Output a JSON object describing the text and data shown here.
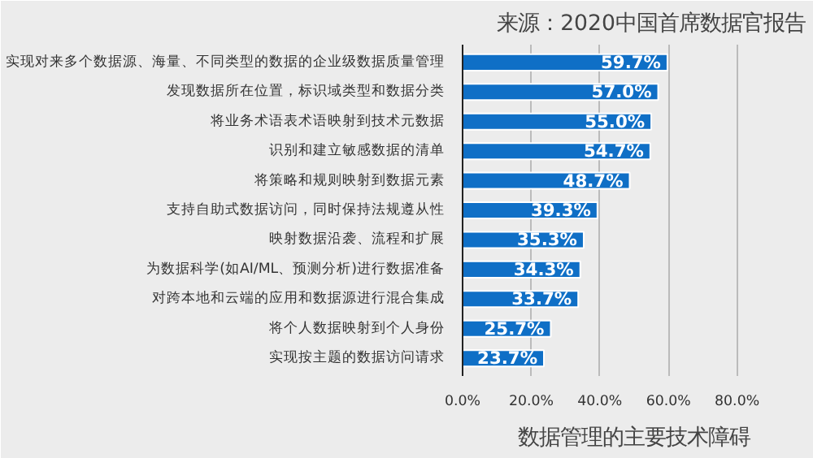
{
  "chart_data": {
    "type": "bar",
    "orientation": "horizontal",
    "title": "数据管理的主要技术障碍",
    "annotations": [
      "来源：2020中国首席数据官报告"
    ],
    "categories": [
      "实现对来多个数据源、海量、不同类型的数据的企业级数据质量管理",
      "发现数据所在位置，标识域类型和数据分类",
      "将业务术语表术语映射到技术元数据",
      "识别和建立敏感数据的清单",
      "将策略和规则映射到数据元素",
      "支持自助式数据访问，同时保持法规遵从性",
      "映射数据沿袭、流程和扩展",
      "为数据科学(如AI/ML、预测分析)进行数据准备",
      "对跨本地和云端的应用和数据源进行混合集成",
      "将个人数据映射到个人身份",
      "实现按主题的数据访问请求"
    ],
    "values": [
      59.7,
      57.0,
      55.0,
      54.7,
      48.7,
      39.3,
      35.3,
      34.3,
      33.7,
      25.7,
      23.7
    ],
    "value_labels": [
      "59.7%",
      "57.0%",
      "55.0%",
      "54.7%",
      "48.7%",
      "39.3%",
      "35.3%",
      "34.3%",
      "33.7%",
      "25.7%",
      "23.7%"
    ],
    "color": "#0f6fc6",
    "xlim": [
      0,
      100
    ],
    "xticks": [
      {
        "value": 0,
        "label": "0.0%"
      },
      {
        "value": 20,
        "label": "20.0%"
      },
      {
        "value": 40,
        "label": "40.0%"
      },
      {
        "value": 60,
        "label": "60.0%"
      },
      {
        "value": 80,
        "label": "80.0%"
      }
    ],
    "grid": "x"
  }
}
